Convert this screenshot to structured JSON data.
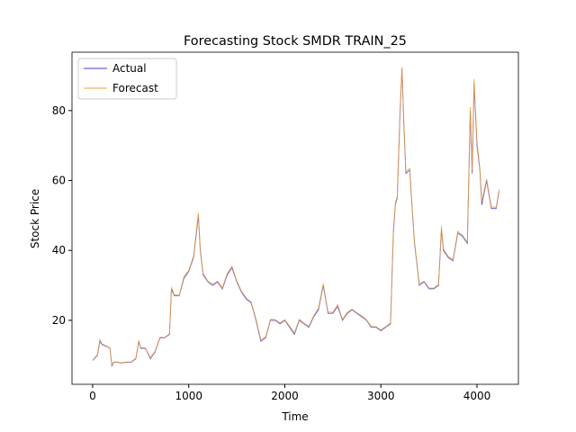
{
  "chart_data": {
    "type": "line",
    "title": "Forecasting Stock SMDR TRAIN_25",
    "x_label": "Time",
    "y_label": "Stock Price",
    "x": [
      0,
      50,
      75,
      100,
      150,
      180,
      200,
      220,
      250,
      300,
      350,
      400,
      450,
      480,
      500,
      550,
      600,
      650,
      700,
      750,
      800,
      820,
      850,
      900,
      950,
      1000,
      1050,
      1080,
      1100,
      1120,
      1150,
      1200,
      1250,
      1300,
      1350,
      1400,
      1450,
      1500,
      1550,
      1600,
      1650,
      1700,
      1750,
      1800,
      1850,
      1900,
      1950,
      2000,
      2050,
      2100,
      2150,
      2200,
      2250,
      2300,
      2350,
      2400,
      2450,
      2500,
      2550,
      2600,
      2650,
      2700,
      2750,
      2800,
      2850,
      2900,
      2950,
      3000,
      3050,
      3100,
      3130,
      3150,
      3170,
      3200,
      3220,
      3240,
      3260,
      3300,
      3330,
      3350,
      3400,
      3450,
      3500,
      3550,
      3600,
      3630,
      3650,
      3700,
      3750,
      3800,
      3850,
      3900,
      3930,
      3950,
      3970,
      4000,
      4030,
      4050,
      4100,
      4150,
      4200,
      4230
    ],
    "series": [
      {
        "name": "Actual",
        "color": "#4040e0",
        "values": [
          8.5,
          10,
          14,
          13,
          12.5,
          12,
          7,
          8,
          8,
          7.8,
          8,
          8,
          9,
          14,
          12,
          12,
          9,
          11,
          15,
          15,
          16,
          29,
          27,
          27,
          32,
          34,
          38,
          45,
          50,
          40,
          33,
          31,
          30,
          31,
          29,
          33,
          35,
          31,
          28,
          26,
          25,
          20,
          14,
          15,
          20,
          20,
          19,
          20,
          18,
          16,
          20,
          19,
          18,
          21,
          23,
          30,
          22,
          22,
          24,
          20,
          22,
          23,
          22,
          21,
          20,
          18,
          18,
          17,
          18,
          19,
          45,
          53,
          55,
          80,
          92,
          75,
          62,
          63,
          50,
          42,
          30,
          31,
          29,
          29,
          30,
          46,
          40,
          38,
          37,
          45,
          44,
          42,
          80,
          62,
          88,
          70,
          63,
          53,
          60,
          52,
          52,
          57
        ]
      },
      {
        "name": "Forecast",
        "color": "#f0a030",
        "values": [
          8.6,
          10.2,
          14.5,
          13.2,
          12.6,
          12.1,
          7.3,
          8.1,
          8.1,
          7.9,
          8.1,
          8.1,
          9.2,
          14.3,
          12.2,
          12.1,
          9.3,
          11.2,
          15.2,
          15.1,
          16.2,
          29.5,
          27.3,
          27.2,
          32.5,
          34.3,
          38.4,
          45.8,
          50.8,
          40.5,
          33.4,
          31.2,
          30.3,
          31.2,
          29.3,
          33.4,
          35.5,
          31.3,
          28.3,
          26.4,
          25.3,
          20.4,
          14.5,
          15.3,
          20.3,
          20.2,
          19.3,
          20.2,
          18.3,
          16.4,
          20.3,
          19.2,
          18.3,
          21.3,
          23.5,
          30.5,
          22.4,
          22.3,
          24.5,
          20.3,
          22.3,
          23.2,
          22.2,
          21.3,
          20.2,
          18.3,
          18.2,
          17.3,
          18.2,
          19.3,
          46,
          53.5,
          55.5,
          81,
          92.5,
          76,
          62.5,
          63.5,
          50.5,
          42.5,
          30.5,
          31.2,
          29.3,
          29.2,
          30.3,
          47,
          40.5,
          38.3,
          37.4,
          45.5,
          44.3,
          42.4,
          81,
          63,
          89,
          71,
          63.5,
          54,
          60.5,
          52.5,
          52.3,
          57.5
        ]
      }
    ],
    "xlim": [
      -215,
      4431
    ],
    "ylim": [
      1.7,
      96.7
    ],
    "xticks": [
      0,
      1000,
      2000,
      3000,
      4000
    ],
    "yticks": [
      20,
      40,
      60,
      80
    ],
    "legend": "upper left"
  }
}
